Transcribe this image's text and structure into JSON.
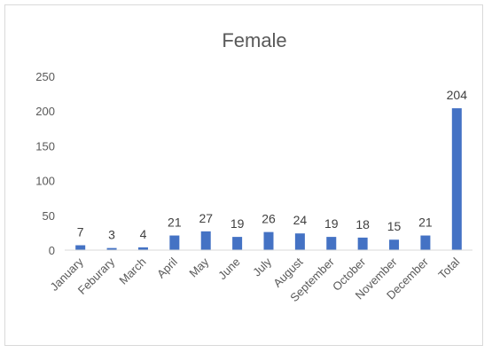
{
  "chart_data": {
    "type": "bar",
    "title": "Female",
    "xlabel": "",
    "ylabel": "",
    "categories": [
      "January",
      "Feburary",
      "March",
      "April",
      "May",
      "June",
      "July",
      "August",
      "September",
      "October",
      "November",
      "December",
      "Total"
    ],
    "values": [
      7,
      3,
      4,
      21,
      27,
      19,
      26,
      24,
      19,
      18,
      15,
      21,
      204
    ],
    "ylim": [
      0,
      250
    ],
    "yticks": [
      0,
      50,
      100,
      150,
      200,
      250
    ],
    "grid": false,
    "legend": "none",
    "bar_color": "#4472c4",
    "data_labels": true
  }
}
